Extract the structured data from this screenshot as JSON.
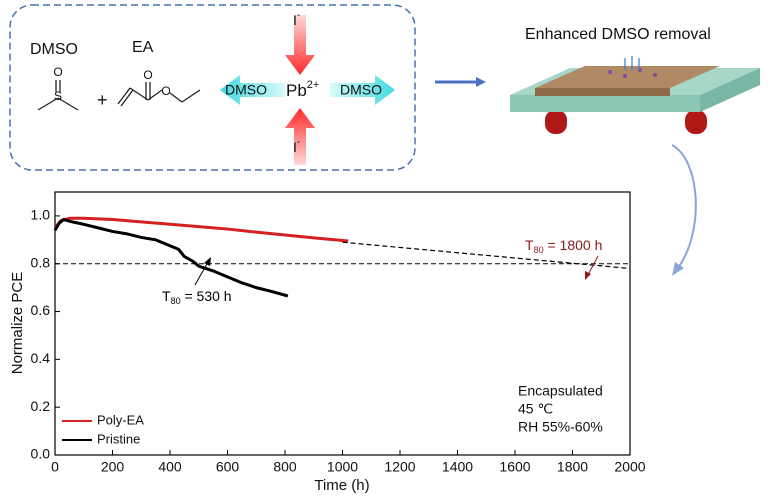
{
  "schematic": {
    "dmso": "DMSO",
    "ea": "EA",
    "plus": "+",
    "iodide_top": {
      "main": "I",
      "sup": "-"
    },
    "iodide_bottom": {
      "main": "I",
      "sup": "-"
    },
    "lead": {
      "main": "Pb",
      "sup": "2+"
    },
    "dmso_left": "DMSO",
    "dmso_right": "DMSO",
    "removal": "Enhanced  DMSO removal"
  },
  "chart_data": {
    "type": "line",
    "xlabel": "Time (h)",
    "ylabel": "Normalize PCE",
    "xlim": [
      0,
      2000
    ],
    "xticks": [
      0,
      200,
      400,
      600,
      800,
      1000,
      1200,
      1400,
      1600,
      1800,
      2000
    ],
    "ylim": [
      0,
      1.1
    ],
    "yticks": [
      {
        "value": 0,
        "label": "0.0"
      },
      0.2,
      0.4,
      0.6,
      0.8,
      {
        "value": 1,
        "label": "1.0"
      }
    ],
    "series": [
      {
        "name": "Poly-EA",
        "color": "#d42020",
        "x": [
          0,
          20,
          50,
          100,
          200,
          300,
          400,
          500,
          600,
          700,
          800,
          900,
          1020
        ],
        "values": [
          0.95,
          0.98,
          0.99,
          0.99,
          0.985,
          0.975,
          0.965,
          0.955,
          0.945,
          0.932,
          0.92,
          0.908,
          0.895
        ]
      },
      {
        "name": "Pristine",
        "color": "#000000",
        "x": [
          0,
          15,
          30,
          60,
          100,
          150,
          200,
          250,
          300,
          350,
          400,
          430,
          450,
          480,
          500,
          550,
          600,
          650,
          700,
          750,
          810
        ],
        "values": [
          0.94,
          0.97,
          0.985,
          0.975,
          0.965,
          0.95,
          0.935,
          0.925,
          0.91,
          0.9,
          0.875,
          0.86,
          0.83,
          0.81,
          0.79,
          0.77,
          0.745,
          0.72,
          0.7,
          0.685,
          0.665
        ]
      }
    ],
    "fit_line": {
      "x": [
        1000,
        2000
      ],
      "values": [
        0.89,
        0.78
      ]
    },
    "reference_line": 0.8,
    "annotations": [
      {
        "main": "T",
        "sub": "80",
        "rest": " = 1800 h",
        "color": "#8b1a1a"
      },
      {
        "main": "T",
        "sub": "80",
        "rest": " = 530 h",
        "color": "#000000"
      }
    ],
    "notes": [
      "Encapsulated",
      "45 ℃",
      "RH 55%-60%"
    ]
  }
}
